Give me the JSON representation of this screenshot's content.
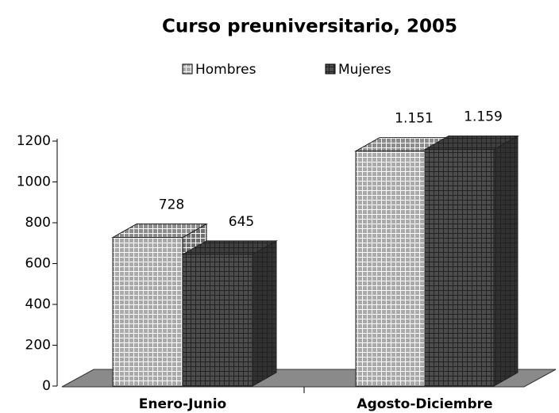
{
  "chart_data": {
    "type": "bar3d",
    "title": "Curso preuniversitario, 2005",
    "categories": [
      "Enero-Junio",
      "Agosto-Diciembre"
    ],
    "series": [
      {
        "name": "Hombres",
        "color": "#c8c8c8",
        "values": [
          728,
          1151
        ],
        "value_labels": [
          "728",
          "1.151"
        ]
      },
      {
        "name": "Mujeres",
        "color": "#5a5a5a",
        "values": [
          645,
          1159
        ],
        "value_labels": [
          "645",
          "1.159"
        ]
      }
    ],
    "ylim": [
      0,
      1200
    ],
    "yticks": [
      0,
      200,
      400,
      600,
      800,
      1000,
      1200
    ],
    "legend": "top"
  }
}
